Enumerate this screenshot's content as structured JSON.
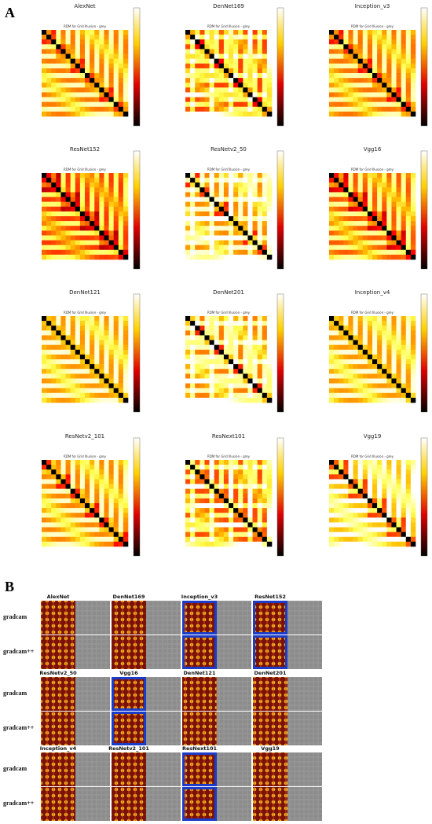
{
  "panel_a": {
    "label": "A",
    "subtitle": "RDM for Grid Illusion - grey",
    "models": [
      "AlexNet",
      "DenNet169",
      "Inception_v3",
      "ResNet152",
      "ResNetv2_50",
      "Vgg16",
      "DenNet121",
      "DenNet201",
      "Inception_v4",
      "ResNetv2_101",
      "ResNext101",
      "Vgg19"
    ]
  },
  "panel_b": {
    "label": "B",
    "row_labels": [
      "gradcam",
      "gradcam++"
    ],
    "models": [
      "AlexNet",
      "DenNet169",
      "Inception_v3",
      "ResNet152",
      "ResNetv2_50",
      "Vgg16",
      "DenNet121",
      "DenNet201",
      "Inception_v4",
      "ResNetv2_101",
      "ResNext101",
      "Vgg19"
    ]
  }
}
